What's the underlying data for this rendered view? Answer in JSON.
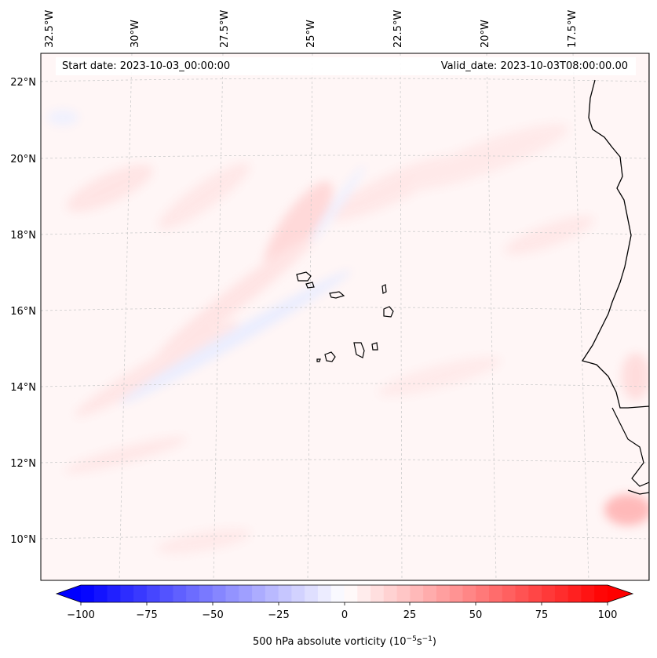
{
  "map": {
    "lon_labels": [
      "32.5°W",
      "30°W",
      "27.5°W",
      "25°W",
      "22.5°W",
      "20°W",
      "17.5°W"
    ],
    "lat_labels": [
      "22°N",
      "20°N",
      "18°N",
      "16°N",
      "14°N",
      "12°N",
      "10°N"
    ]
  },
  "header": {
    "start_date": "Start date: 2023-10-03_00:00:00",
    "valid_date": "Valid_date: 2023-10-03T08:00:00.00"
  },
  "colorbar": {
    "ticks": [
      "−100",
      "−75",
      "−50",
      "−25",
      "0",
      "25",
      "50",
      "75",
      "100"
    ],
    "label_main": "500 hPa absolute vorticity (10",
    "label_exp1": "−5",
    "label_mid": "s",
    "label_exp2": "−1",
    "label_end": ")",
    "min_color": "#0000ff",
    "zero_color": "#ffffff",
    "max_color": "#ff0000"
  }
}
